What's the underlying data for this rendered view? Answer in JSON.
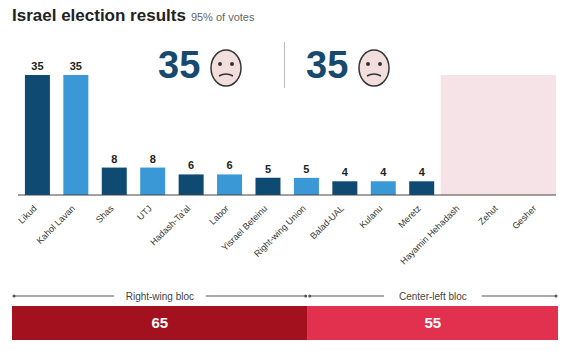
{
  "chart_data": [
    {
      "type": "bar",
      "title": "Israel election results",
      "subtitle": "95% of votes",
      "annotations": [
        "35",
        "35"
      ],
      "categories": [
        "Likud",
        "Kahol Lavan",
        "Shas",
        "UTJ",
        "Hadash-Ta'al",
        "Labor",
        "Yisrael Beteinu",
        "Right-wing Union",
        "Balad-UAL",
        "Kulanu",
        "Meretz",
        "Hayamin Hehadash",
        "Zehut",
        "Gesher"
      ],
      "values": [
        35,
        35,
        8,
        8,
        6,
        6,
        5,
        5,
        4,
        4,
        4,
        0,
        0,
        0
      ],
      "colors": [
        "#0f4a73",
        "#3a98d6",
        "#0f4a73",
        "#3a98d6",
        "#0f4a73",
        "#3a98d6",
        "#0f4a73",
        "#3a98d6",
        "#0f4a73",
        "#3a98d6",
        "#0f4a73",
        "#d24a62",
        "#d24a62",
        "#d24a62"
      ],
      "ylim": [
        0,
        35
      ],
      "data_labels": true,
      "tick_labels": "x"
    },
    {
      "type": "bar",
      "orientation": "horizontal",
      "stacked": true,
      "series": [
        {
          "name": "Right-wing bloc",
          "color": "#a3111f",
          "values": [
            65
          ]
        },
        {
          "name": "Center-left bloc",
          "color": "#e2314f",
          "values": [
            55
          ]
        }
      ],
      "xlim": [
        0,
        120
      ],
      "data_labels": true,
      "tick_labels": false
    }
  ]
}
